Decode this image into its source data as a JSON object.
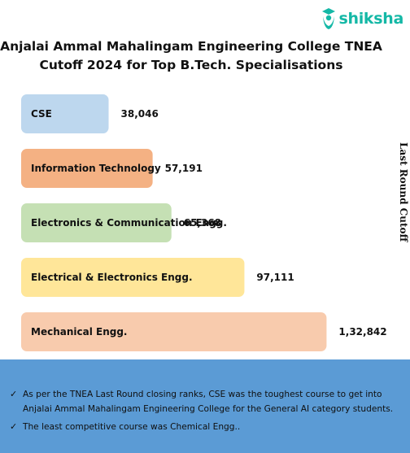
{
  "brand": {
    "name": "shiksha",
    "color": "#14b8a6"
  },
  "chart_data": {
    "type": "bar",
    "orientation": "horizontal",
    "title_line1": "Anjalai Ammal Mahalingam Engineering College TNEA",
    "title_line2": "Cutoff 2024 for Top B.Tech. Specialisations",
    "ylabel": "Last Round Cutoff",
    "categories": [
      "CSE",
      "Information Technology",
      "Electronics & Communication Engg.",
      "Electrical & Electronics Engg.",
      "Mechanical Engg."
    ],
    "values": [
      38046,
      57191,
      65368,
      97111,
      132842
    ],
    "value_labels": [
      "38,046",
      "57,191",
      "65,368",
      "97,111",
      "1,32,842"
    ],
    "colors": [
      "#bdd7ee",
      "#f4b183",
      "#c5e0b4",
      "#ffe699",
      "#f8cbad"
    ],
    "grid": false,
    "legend": "none"
  },
  "notes": {
    "check_icon": "check-icon",
    "items": [
      "As per the TNEA Last Round closing ranks, CSE was the toughest course to get into Anjalai Ammal Mahalingam Engineering College for the General AI category students.",
      "The least competitive course was Chemical Engg.."
    ],
    "background": "#5b9bd5"
  }
}
